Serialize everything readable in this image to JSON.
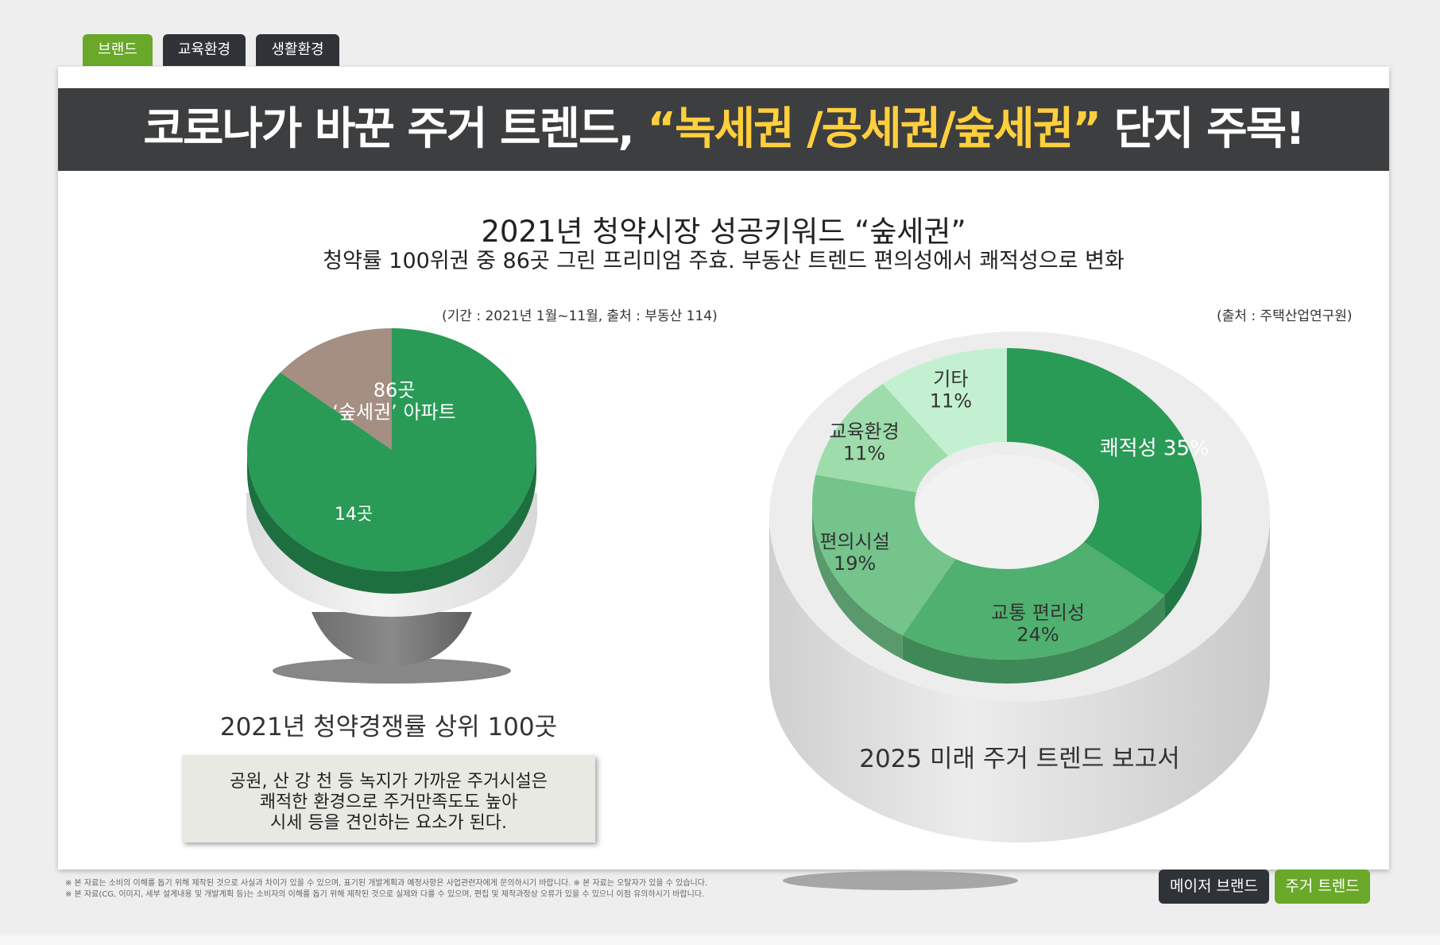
{
  "tabs": [
    "브랜드",
    "교육환경",
    "생활환경"
  ],
  "banner": {
    "part1": "코로나가 바꾼 주거 트렌드, ",
    "part2": "“녹세권 /공세권/숲세권”",
    "part3": " 단지 주목!"
  },
  "headline": "2021년 청약시장 성공키워드 “숲세권”",
  "subheadline": "청약률 100위권 중 86곳 그린 프리미엄 주효. 부동산 트렌드 편의성에서 쾌적성으로 변화",
  "source_left": "(기간 : 2021년 1월~11월, 출처 : 부동산 114)",
  "source_right": "(출처 : 주택산업연구원)",
  "left_caption": "2021년 청약경쟁률 상위 100곳",
  "note_lines": [
    "공원, 산 강 천 등 녹지가 가까운 주거시설은",
    "쾌적한 환경으로 주거만족도도 높아",
    "시세 등을 견인하는 요소가 된다."
  ],
  "right_caption": "2025 미래 주거 트렌드 보고서",
  "footnotes": [
    "※ 본 자료는 소비의 이해를 돕기 위해 제작된 것으로 사실과 차이가 있을 수 있으며, 표기된 개발계획과 예정사항은 사업관련자에게 문의하시기 바랍니다.   ※ 본 자료는 오탈자가 있을 수 있습니다.",
    "※ 본 자료(CG, 이미지, 세부 설계내용 및 개발계획 등)는 소비자의 이해를 돕기 위해 제작된 것으로 실제와 다를 수 있으며, 편집 및 제작과정상 오류가 있을 수 있으니 이점 유의하시기 바랍니다."
  ],
  "buttons": [
    "메이저 브랜드",
    "주거 트렌드"
  ],
  "colors": {
    "accent_green": "#6aa829",
    "dark": "#3d3e3f",
    "highlight_yellow": "#ffcf3d"
  },
  "chart_data": [
    {
      "type": "pie",
      "labels": [
        "86곳\n‘숲세권’ 아파트",
        "14곳"
      ],
      "values": [
        86,
        14
      ],
      "colors": [
        "#2a9a57",
        "#a48f82"
      ]
    },
    {
      "type": "pie",
      "labels": [
        "쾌적성",
        "교통 편리성",
        "편의시설",
        "교육환경",
        "기타"
      ],
      "values": [
        35,
        24,
        19,
        11,
        11
      ],
      "data_labels": [
        "쾌적성 35%",
        "교통 편리성\n24%",
        "편의시설\n19%",
        "교육환경\n11%",
        "기타\n11%"
      ],
      "colors": [
        "#2a9a57",
        "#4fb06f",
        "#74c48b",
        "#9edcac",
        "#c3f0d1"
      ]
    }
  ]
}
